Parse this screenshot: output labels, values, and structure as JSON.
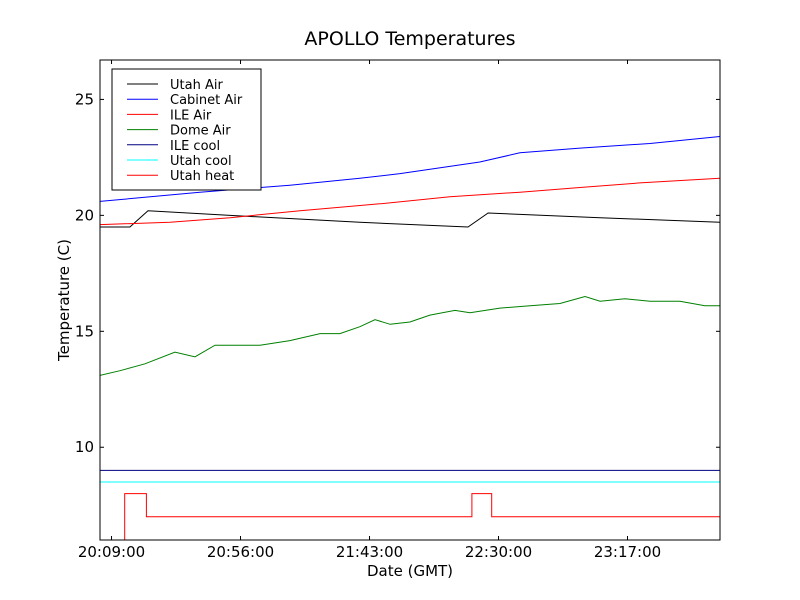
{
  "chart_data": {
    "type": "line",
    "title": "APOLLO Temperatures",
    "xlabel": "Date (GMT)",
    "ylabel": "Temperature (C)",
    "x_unit": "minutes after 20:00 GMT",
    "xlim": [
      4.8,
      230.7
    ],
    "ylim": [
      6.0,
      26.7
    ],
    "x_ticks": [
      {
        "value": 9,
        "label": "20:09:00"
      },
      {
        "value": 56,
        "label": "20:56:00"
      },
      {
        "value": 103,
        "label": "21:43:00"
      },
      {
        "value": 150,
        "label": "22:30:00"
      },
      {
        "value": 197,
        "label": "23:17:00"
      }
    ],
    "y_ticks": [
      {
        "value": 10,
        "label": "10"
      },
      {
        "value": 15,
        "label": "15"
      },
      {
        "value": 20,
        "label": "20"
      },
      {
        "value": 25,
        "label": "25"
      }
    ],
    "legend_position": "top-left",
    "series": [
      {
        "name": "Utah Air",
        "color": "#000000",
        "x": [
          4.8,
          15.7,
          22.3,
          52.2,
          99.5,
          138.9,
          146.2,
          187.0,
          230.7
        ],
        "y": [
          19.5,
          19.5,
          20.2,
          20.0,
          19.7,
          19.5,
          20.1,
          19.9,
          19.7
        ]
      },
      {
        "name": "Cabinet Air",
        "color": "#0000ff",
        "x": [
          4.8,
          41.2,
          74.0,
          99.5,
          114.1,
          143.2,
          157.8,
          179.7,
          205.2,
          230.7
        ],
        "y": [
          20.6,
          21.0,
          21.3,
          21.6,
          21.8,
          22.3,
          22.7,
          22.9,
          23.1,
          23.4
        ]
      },
      {
        "name": "ILE Air",
        "color": "#ff0000",
        "x": [
          4.8,
          30.3,
          52.2,
          77.7,
          106.8,
          132.3,
          157.8,
          179.7,
          201.5,
          230.7
        ],
        "y": [
          19.6,
          19.7,
          19.9,
          20.2,
          20.5,
          20.8,
          21.0,
          21.2,
          21.4,
          21.6
        ]
      },
      {
        "name": "Dome Air",
        "color": "#008000",
        "x": [
          4.8,
          12.1,
          21.2,
          32.1,
          39.4,
          46.7,
          63.1,
          74.0,
          85.0,
          92.2,
          99.5,
          105.0,
          110.5,
          117.7,
          125.0,
          134.1,
          139.6,
          150.5,
          161.5,
          172.4,
          181.5,
          187.0,
          196.1,
          205.2,
          216.1,
          225.2,
          230.7
        ],
        "y": [
          13.1,
          13.3,
          13.6,
          14.1,
          13.9,
          14.4,
          14.4,
          14.6,
          14.9,
          14.9,
          15.2,
          15.5,
          15.3,
          15.4,
          15.7,
          15.9,
          15.8,
          16.0,
          16.1,
          16.2,
          16.5,
          16.3,
          16.4,
          16.3,
          16.3,
          16.1,
          16.1
        ]
      },
      {
        "name": "ILE cool",
        "color": "#000080",
        "x": [
          4.8,
          230.7
        ],
        "y": [
          9.0,
          9.0
        ]
      },
      {
        "name": "Utah cool",
        "color": "#00ffff",
        "x": [
          4.8,
          230.7
        ],
        "y": [
          8.5,
          8.5
        ]
      },
      {
        "name": "Utah heat",
        "color": "#ff0000",
        "x": [
          4.8,
          13.8,
          13.8,
          21.7,
          21.7,
          140.3,
          140.3,
          147.5,
          147.5,
          230.7
        ],
        "y": [
          6.0,
          6.0,
          8.0,
          8.0,
          7.0,
          7.0,
          8.0,
          8.0,
          7.0,
          7.0
        ]
      }
    ]
  }
}
